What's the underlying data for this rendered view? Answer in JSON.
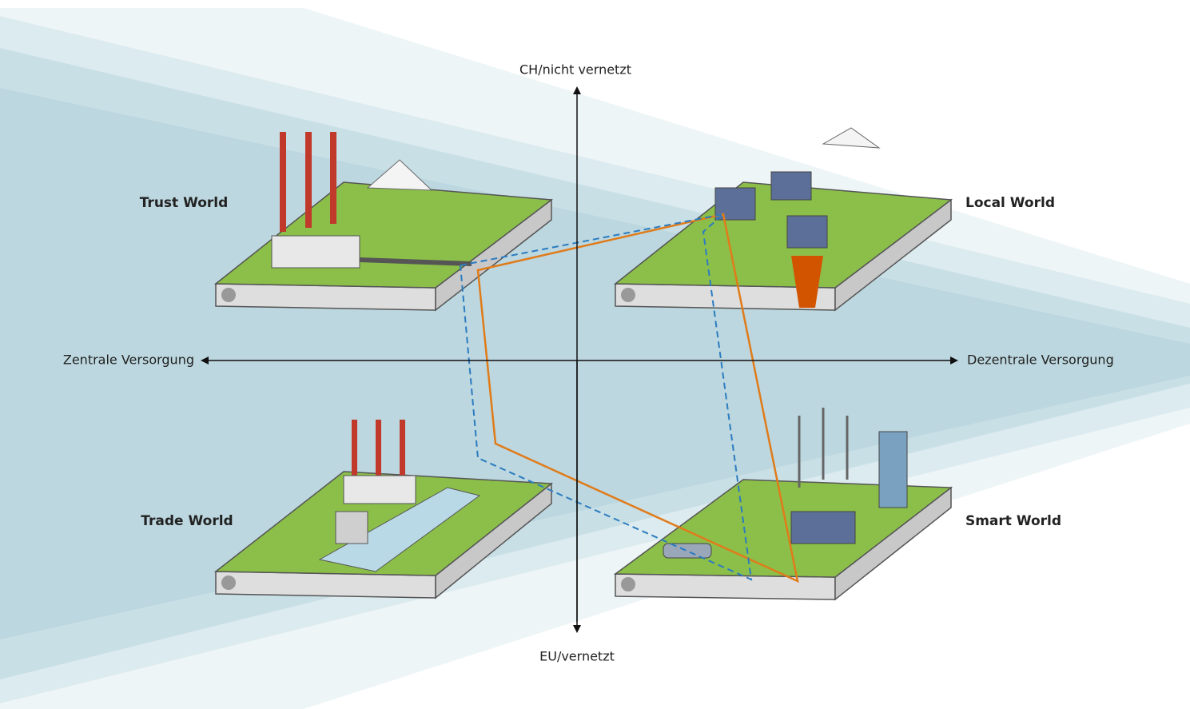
{
  "axes": {
    "top": "CH/nicht vernetzt",
    "bottom": "EU/vernetzt",
    "left": "Zentrale Versorgung",
    "right": "Dezentrale Versorgung"
  },
  "worlds": [
    "Trust World",
    "Local World",
    "Trade World",
    "Smart World"
  ]
}
